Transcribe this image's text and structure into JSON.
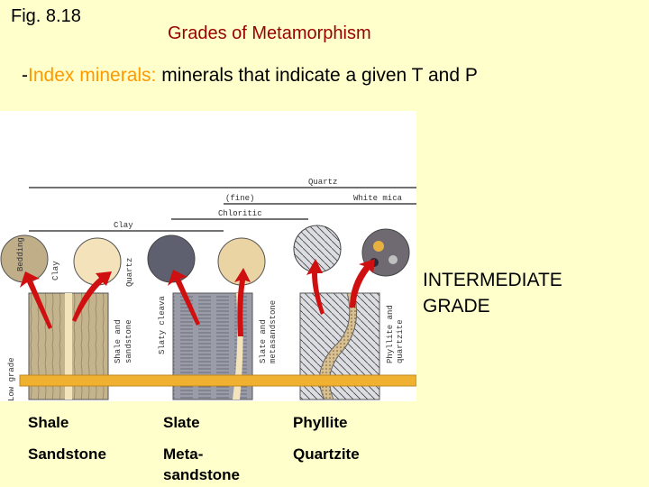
{
  "fig_label": "Fig. 8.18",
  "title": "Grades of Metamorphism",
  "subtitle": {
    "prefix": "-",
    "highlight": "Index minerals:",
    "rest": " minerals that indicate a given T and P"
  },
  "grade_label": [
    "INTERMEDIATE",
    "GRADE"
  ],
  "figure": {
    "mineral_lines": {
      "quartz": "Quartz",
      "fine": "(fine)",
      "white_mica": "White mica",
      "chloritic": "Chloritic",
      "clay": "Clay"
    },
    "labels": {
      "clay": "Clay",
      "quartz": "Quartz",
      "bedding": "Bedding",
      "slaty_cleavage": "Slaty cleava",
      "low_grade": "Low grade",
      "shale_and_sandstone": [
        "Shale and",
        "sandstone"
      ],
      "slate_and_metasandstone": [
        "Slate and",
        "metasandstone"
      ],
      "phyllite_and_quartzite": [
        "Phyllite and",
        "quartzite"
      ]
    },
    "colors": {
      "grade_bar": "#F0B030",
      "arrow": "#D01010"
    }
  },
  "rocks": [
    {
      "top": "Shale",
      "bottom": "Sandstone"
    },
    {
      "top": "Slate",
      "bottom": [
        "Meta-",
        "sandstone"
      ]
    },
    {
      "top": "Phyllite",
      "bottom": "Quartzite"
    }
  ]
}
